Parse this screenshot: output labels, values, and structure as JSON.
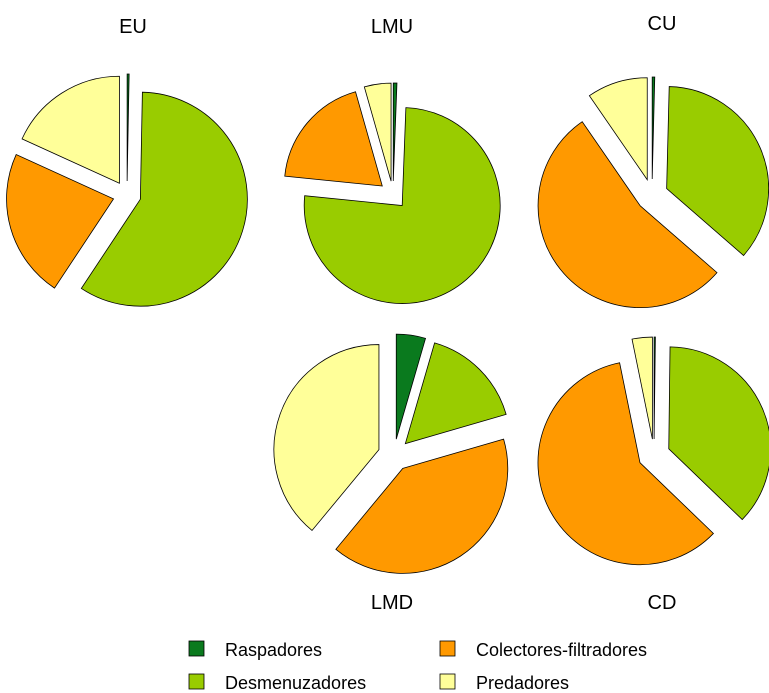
{
  "colors": {
    "Raspadores": "#0a7a1e",
    "Desmenuzadores": "#99cc00",
    "Colectores-filtradores": "#ff9900",
    "Predadores": "#ffff99"
  },
  "legend": [
    {
      "label": "Raspadores",
      "color": "#0a7a1e"
    },
    {
      "label": "Colectores-filtradores",
      "color": "#ff9900"
    },
    {
      "label": "Desmenuzadores",
      "color": "#99cc00"
    },
    {
      "label": "Predadores",
      "color": "#ffff99"
    }
  ],
  "chart_data": [
    {
      "type": "pie",
      "title": "EU",
      "labels": [
        "Raspadores",
        "Desmenuzadores",
        "Colectores-filtradores",
        "Predadores"
      ],
      "values": [
        0.3,
        59,
        22.5,
        18.2
      ]
    },
    {
      "type": "pie",
      "title": "LMU",
      "labels": [
        "Raspadores",
        "Desmenuzadores",
        "Colectores-filtradores",
        "Predadores"
      ],
      "values": [
        0.6,
        76,
        19,
        4.4
      ]
    },
    {
      "type": "pie",
      "title": "CU",
      "labels": [
        "Raspadores",
        "Desmenuzadores",
        "Colectores-filtradores",
        "Predadores"
      ],
      "values": [
        0.4,
        36,
        54,
        9.6
      ]
    },
    {
      "type": "pie",
      "title": "LMD",
      "labels": [
        "Raspadores",
        "Desmenuzadores",
        "Colectores-filtradores",
        "Predadores"
      ],
      "values": [
        4.5,
        16,
        40.5,
        39
      ]
    },
    {
      "type": "pie",
      "title": "CD",
      "labels": [
        "Raspadores",
        "Desmenuzadores",
        "Colectores-filtradores",
        "Predadores"
      ],
      "values": [
        0.2,
        37,
        59.6,
        3.2
      ]
    }
  ]
}
